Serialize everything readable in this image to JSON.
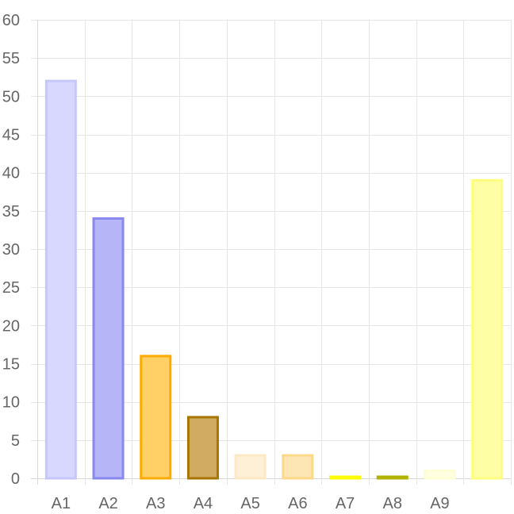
{
  "chart_data": {
    "type": "bar",
    "title": "",
    "xlabel": "",
    "ylabel": "",
    "categories": [
      "A1",
      "A2",
      "A3",
      "A4",
      "A5",
      "A6",
      "A7",
      "A8",
      "A9",
      ""
    ],
    "values": [
      52,
      34,
      16,
      8,
      3,
      3,
      0,
      0,
      1,
      39
    ],
    "ylim": [
      0,
      60
    ],
    "yticks": [
      0,
      5,
      10,
      15,
      20,
      25,
      30,
      35,
      40,
      45,
      50,
      55,
      60
    ],
    "grid": true,
    "legend": "none",
    "colors": {
      "fill": [
        "#d8d8ff",
        "#b5b5f8",
        "#fed066",
        "#d2ab62",
        "#fef0d6",
        "#fde6b3",
        "#fcfc7a",
        "#d2d25f",
        "#fefee0",
        "#fefea4"
      ],
      "stroke": [
        "#c6c6fb",
        "#8888ef",
        "#feab00",
        "#a67600",
        "#fde8c6",
        "#fcd88a",
        "#fcfc00",
        "#b2b200",
        "#fefed6",
        "#fefe7e"
      ]
    }
  }
}
